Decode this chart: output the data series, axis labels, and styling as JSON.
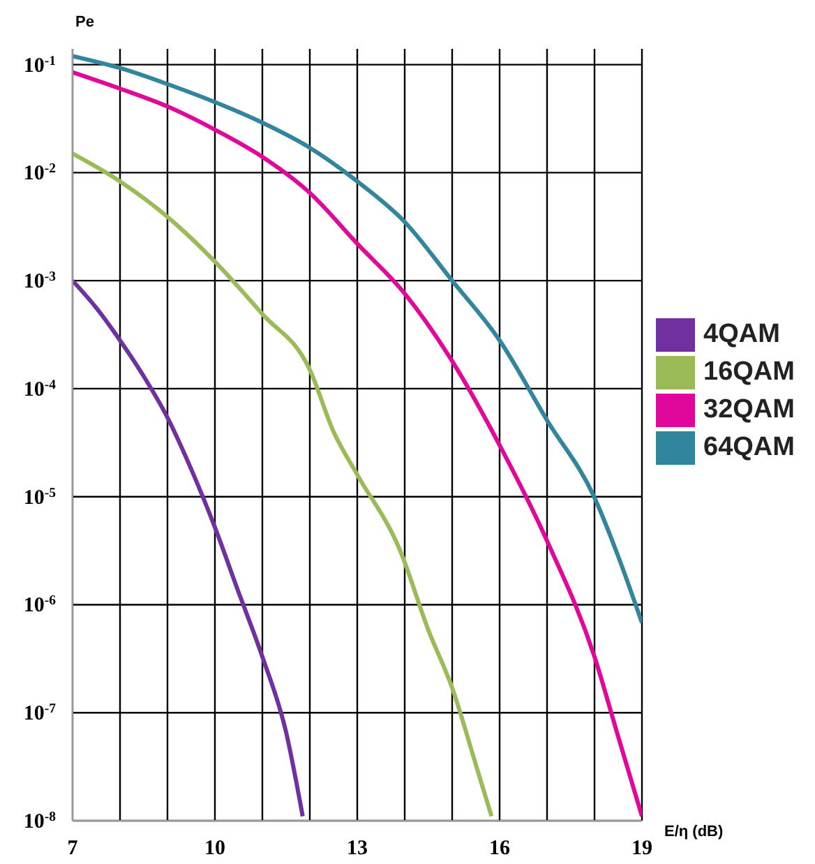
{
  "chart_data": {
    "type": "line",
    "ylabel": "Pe",
    "xlabel": "E/η (dB)",
    "log": "y",
    "grid": true,
    "legend": "right",
    "marker": "none",
    "line_style": "solid",
    "xlim": [
      7,
      19
    ],
    "xticks": [
      7,
      {
        "value": 8,
        "label": null
      },
      {
        "value": 9,
        "label": null
      },
      10,
      {
        "value": 11,
        "label": null
      },
      {
        "value": 12,
        "label": null
      },
      13,
      {
        "value": 14,
        "label": null
      },
      {
        "value": 15,
        "label": null
      },
      16,
      {
        "value": 17,
        "label": null
      },
      {
        "value": 18,
        "label": null
      },
      19
    ],
    "ylim": [
      1e-08,
      0.14
    ],
    "yticks": [
      {
        "value": 1e-08,
        "label": "10$^{-8}$"
      },
      {
        "value": 1e-07,
        "label": "10$^{-7}$"
      },
      {
        "value": 1e-06,
        "label": "10$^{-6}$"
      },
      {
        "value": 1e-05,
        "label": "10$^{-5}$"
      },
      {
        "value": 0.0001,
        "label": "10$^{-4}$"
      },
      {
        "value": 0.001,
        "label": "10$^{-3}$"
      },
      {
        "value": 0.01,
        "label": "10$^{-2}$"
      },
      {
        "value": 0.1,
        "label": "10$^{-1}$"
      }
    ],
    "series": [
      {
        "name": "4QAM",
        "color": "#7030a0",
        "x": [
          7,
          7.5,
          8,
          8.5,
          9,
          9.5,
          10,
          10.5,
          11,
          11.5,
          11.85
        ],
        "values": [
          0.001,
          0.00056,
          0.00028,
          0.00013,
          5.4e-05,
          1.8e-05,
          5.2e-06,
          1.3e-06,
          3.3e-07,
          6.6e-08,
          1.1e-08
        ]
      },
      {
        "name": "16QAM",
        "color": "#9bbb59",
        "x": [
          7,
          8,
          9,
          10,
          11,
          12,
          12.5,
          13,
          13.9,
          14.5,
          15,
          15.5,
          15.83
        ],
        "values": [
          0.015,
          0.0083,
          0.0039,
          0.0015,
          0.00049,
          0.00015,
          4e-05,
          1.6e-05,
          3.2e-06,
          5.8e-07,
          1.7e-07,
          3.3e-08,
          1.1e-08
        ]
      },
      {
        "name": "32QAM",
        "color": "#e0079a",
        "x": [
          7,
          8,
          9,
          10,
          11,
          12,
          13,
          14,
          15,
          16,
          17,
          18,
          18.5,
          19
        ],
        "values": [
          0.085,
          0.06,
          0.041,
          0.025,
          0.014,
          0.0065,
          0.0022,
          0.00076,
          0.00018,
          3e-05,
          3.9e-06,
          3.3e-07,
          6e-08,
          1.1e-08
        ]
      },
      {
        "name": "64QAM",
        "color": "#31859c",
        "x": [
          7,
          8,
          9,
          10,
          11,
          12,
          13,
          14,
          15,
          16,
          17,
          18,
          18.5,
          19
        ],
        "values": [
          0.12,
          0.093,
          0.066,
          0.045,
          0.029,
          0.017,
          0.0083,
          0.0035,
          0.001,
          0.00028,
          5.1e-05,
          9.8e-06,
          2.8e-06,
          6.8e-07
        ]
      }
    ]
  }
}
